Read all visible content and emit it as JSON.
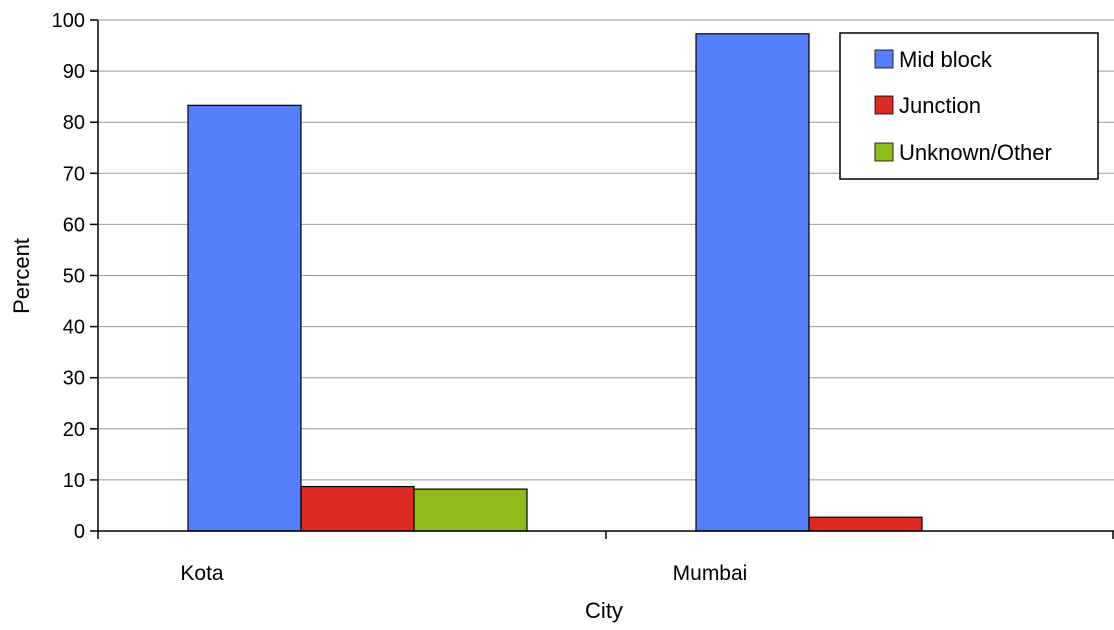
{
  "chart_data": {
    "type": "bar",
    "title": "",
    "xlabel": "City",
    "ylabel": "Percent",
    "categories": [
      "Kota",
      "Mumbai"
    ],
    "series": [
      {
        "name": "Mid block",
        "values": [
          83.3,
          97.3
        ],
        "color": "#557ffb"
      },
      {
        "name": "Junction",
        "values": [
          8.7,
          2.7
        ],
        "color": "#dd2a22"
      },
      {
        "name": "Unknown/Other",
        "values": [
          8.2,
          0
        ],
        "color": "#8fbc1b"
      }
    ],
    "ylim": [
      0,
      100
    ],
    "yticks": [
      0,
      10,
      20,
      30,
      40,
      50,
      60,
      70,
      80,
      90,
      100
    ],
    "grid": true,
    "legend_position": "top-right"
  },
  "colors": {
    "gridline": "#999999",
    "bar_stroke": "#000000",
    "axis": "#000000"
  }
}
